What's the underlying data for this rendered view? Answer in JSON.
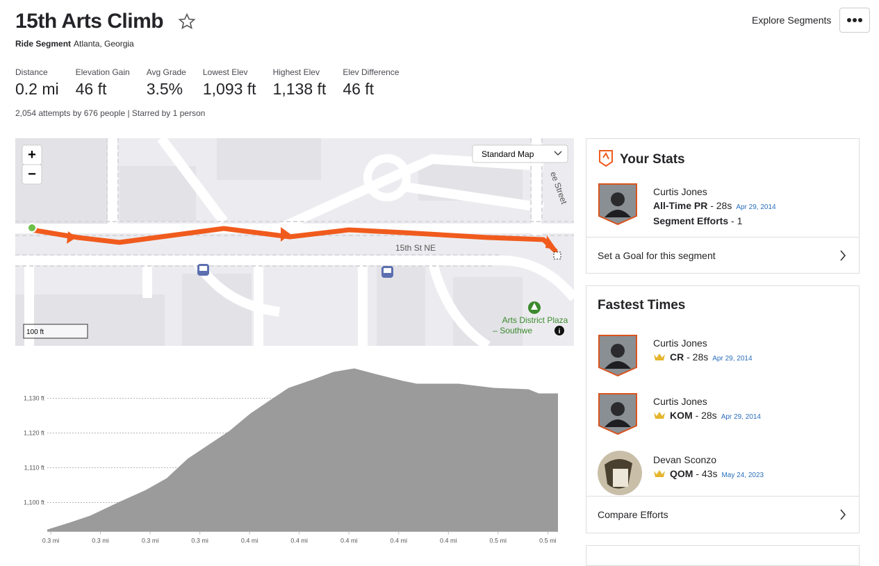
{
  "header": {
    "title": "15th Arts Climb",
    "segment_type": "Ride Segment",
    "location": "Atlanta, Georgia",
    "explore": "Explore Segments"
  },
  "stats": [
    {
      "label": "Distance",
      "value": "0.2 mi"
    },
    {
      "label": "Elevation Gain",
      "value": "46 ft"
    },
    {
      "label": "Avg Grade",
      "value": "3.5%"
    },
    {
      "label": "Lowest Elev",
      "value": "1,093 ft"
    },
    {
      "label": "Highest Elev",
      "value": "1,138 ft"
    },
    {
      "label": "Elev Difference",
      "value": "46 ft"
    }
  ],
  "summary": "2,054 attempts by 676 people | Starred by 1 person",
  "map": {
    "zoom_in": "+",
    "zoom_out": "−",
    "style": "Standard Map",
    "street": "15th St NE",
    "street_vertical": "ee Street",
    "poi": [
      "Arts District Plaza",
      "– Southwe"
    ],
    "scale": "100 ft"
  },
  "elevation_chart": {
    "type": "area",
    "color": "#9b9b9b",
    "x": [
      0.2786,
      0.2876,
      0.2959,
      0.3071,
      0.3183,
      0.3267,
      0.3351,
      0.3435,
      0.3519,
      0.3603,
      0.3673,
      0.3757,
      0.3855,
      0.3938,
      0.4022,
      0.4106,
      0.4218,
      0.4274,
      0.4442,
      0.4582,
      0.4722,
      0.4764,
      0.4841
    ],
    "values": [
      1092.2,
      1094.2,
      1096.2,
      1100,
      1103.6,
      1107,
      1112.6,
      1116.6,
      1120.6,
      1125.6,
      1129,
      1133,
      1135.4,
      1137.6,
      1138.6,
      1137,
      1135,
      1134.2,
      1134.2,
      1133,
      1132.6,
      1131.4,
      1131.4
    ],
    "xlim": [
      0.2786,
      0.4841
    ],
    "ylim": [
      1091.6,
      1140.6
    ],
    "yticks": [
      {
        "value": 1100,
        "label": "1,100 ft"
      },
      {
        "value": 1110,
        "label": "1,110 ft"
      },
      {
        "value": 1120,
        "label": "1,120 ft"
      },
      {
        "value": 1130,
        "label": "1,130 ft"
      }
    ],
    "xticks": [
      {
        "value": 0.28,
        "label": "0.3 mi"
      },
      {
        "value": 0.3,
        "label": "0.3 mi"
      },
      {
        "value": 0.32,
        "label": "0.3 mi"
      },
      {
        "value": 0.34,
        "label": "0.3 mi"
      },
      {
        "value": 0.36,
        "label": "0.4 mi"
      },
      {
        "value": 0.38,
        "label": "0.4 mi"
      },
      {
        "value": 0.4,
        "label": "0.4 mi"
      },
      {
        "value": 0.42,
        "label": "0.4 mi"
      },
      {
        "value": 0.44,
        "label": "0.4 mi"
      },
      {
        "value": 0.46,
        "label": "0.5 mi"
      },
      {
        "value": 0.48,
        "label": "0.5 mi"
      }
    ],
    "grid": true
  },
  "your_stats": {
    "title": "Your Stats",
    "name": "Curtis Jones",
    "pr_label": "All-Time PR",
    "pr_time": "- 28s",
    "pr_date": "Apr 29, 2014",
    "efforts_label": "Segment Efforts",
    "efforts_value": "- 1",
    "goal": "Set a Goal for this segment"
  },
  "fastest_times": {
    "title": "Fastest Times",
    "entries": [
      {
        "name": "Curtis Jones",
        "badge": "CR",
        "time": "- 28s",
        "date": "Apr 29, 2014"
      },
      {
        "name": "Curtis Jones",
        "badge": "KOM",
        "time": "- 28s",
        "date": "Apr 29, 2014"
      },
      {
        "name": "Devan Sconzo",
        "badge": "QOM",
        "time": "- 43s",
        "date": "May 24, 2023"
      }
    ],
    "compare": "Compare Efforts"
  }
}
